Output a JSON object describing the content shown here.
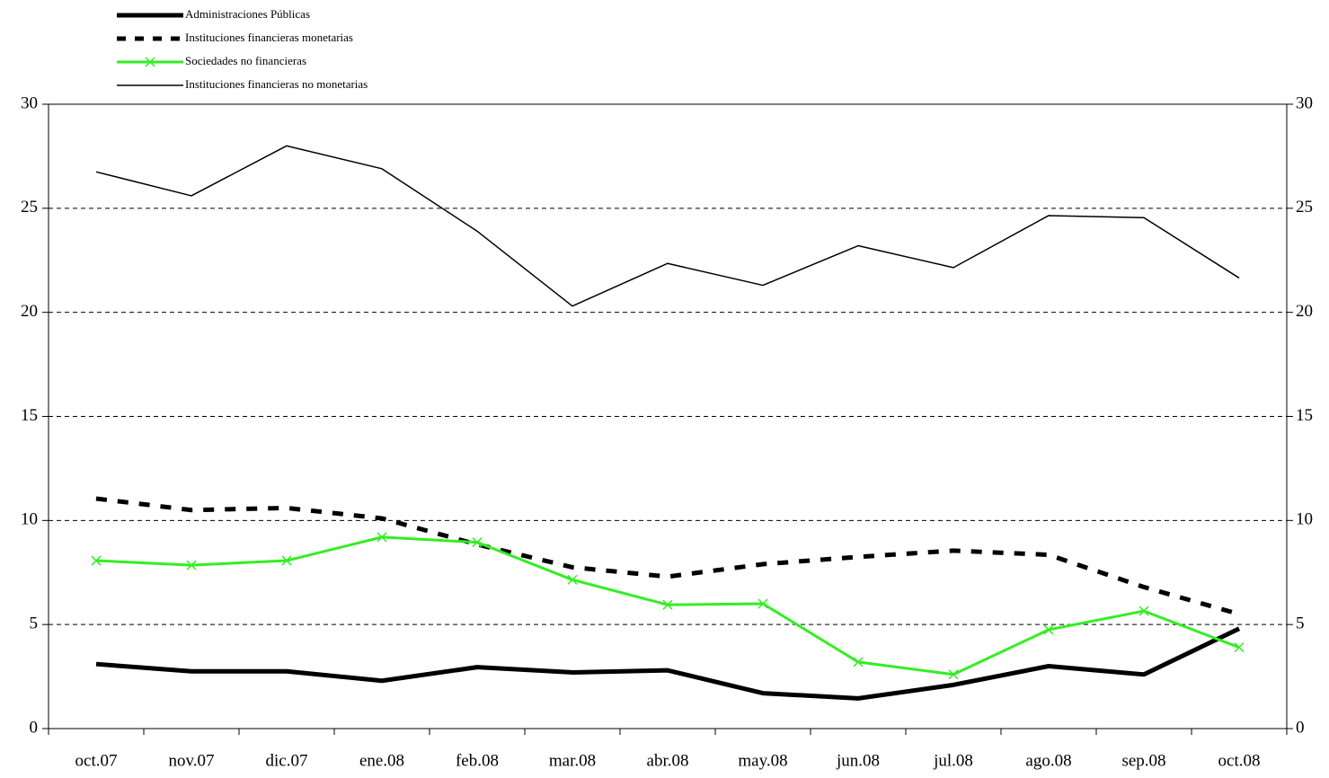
{
  "chart_data": {
    "type": "line",
    "categories": [
      "oct.07",
      "nov.07",
      "dic.07",
      "ene.08",
      "feb.08",
      "mar.08",
      "abr.08",
      "may.08",
      "jun.08",
      "jul.08",
      "ago.08",
      "sep.08",
      "oct.08"
    ],
    "series": [
      {
        "name": "Administraciones Públicas",
        "color": "#000000",
        "width": 5,
        "style": "solid",
        "marker": "none",
        "values": [
          3.1,
          2.75,
          2.75,
          2.3,
          2.95,
          2.7,
          2.8,
          1.7,
          1.45,
          2.1,
          3.0,
          2.6,
          4.8
        ]
      },
      {
        "name": "Instituciones financieras monetarias",
        "color": "#000000",
        "width": 5,
        "style": "dashed",
        "marker": "none",
        "values": [
          11.05,
          10.5,
          10.6,
          10.1,
          8.85,
          7.75,
          7.3,
          7.9,
          8.25,
          8.55,
          8.35,
          6.8,
          5.5
        ]
      },
      {
        "name": "Sociedades no financieras",
        "color": "#33ee22",
        "width": 3,
        "style": "solid",
        "marker": "x",
        "values": [
          8.07,
          7.85,
          8.07,
          9.2,
          8.95,
          7.15,
          5.95,
          6.0,
          3.2,
          2.6,
          4.75,
          5.65,
          3.9
        ]
      },
      {
        "name": "Instituciones financieras no monetarias",
        "color": "#000000",
        "width": 1.5,
        "style": "solid",
        "marker": "none",
        "values": [
          26.75,
          25.6,
          28.0,
          26.9,
          23.9,
          20.3,
          22.35,
          21.3,
          23.2,
          22.15,
          24.65,
          24.55,
          21.65
        ]
      }
    ],
    "ylim": [
      0,
      30
    ],
    "yticks": [
      0,
      5,
      10,
      15,
      20,
      25,
      30
    ],
    "y2lim": [
      0,
      30
    ],
    "y2ticks": [
      0,
      5,
      10,
      15,
      20,
      25,
      30
    ],
    "grid": true,
    "legend": "top-left"
  }
}
